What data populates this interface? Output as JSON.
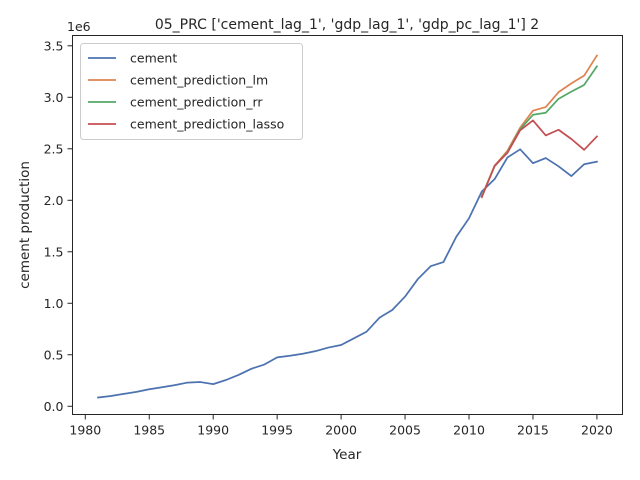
{
  "chart_data": {
    "type": "line",
    "title": "05_PRC ['cement_lag_1', 'gdp_lag_1', 'gdp_pc_lag_1'] 2",
    "xlabel": "Year",
    "ylabel": "cement production",
    "y_offset_label": "1e6",
    "y_multiplier": 1000000,
    "xlim": [
      1979,
      2022
    ],
    "ylim": [
      -80000,
      3600000
    ],
    "x_ticks": [
      1980,
      1985,
      1990,
      1995,
      2000,
      2005,
      2010,
      2015,
      2020
    ],
    "y_ticks": [
      0,
      500000,
      1000000,
      1500000,
      2000000,
      2500000,
      3000000,
      3500000
    ],
    "y_tick_labels": [
      "0.0",
      "0.5",
      "1.0",
      "1.5",
      "2.0",
      "2.5",
      "3.0",
      "3.5"
    ],
    "grid": false,
    "legend_position": "top-left",
    "series": [
      {
        "name": "cement",
        "color": "#4c72b0",
        "x": [
          1981,
          1982,
          1983,
          1984,
          1985,
          1986,
          1987,
          1988,
          1989,
          1990,
          1991,
          1992,
          1993,
          1994,
          1995,
          1996,
          1997,
          1998,
          1999,
          2000,
          2001,
          2002,
          2003,
          2004,
          2005,
          2006,
          2007,
          2008,
          2009,
          2010,
          2011,
          2012,
          2013,
          2014,
          2015,
          2016,
          2017,
          2018,
          2019,
          2020
        ],
        "y": [
          85000,
          100000,
          120000,
          140000,
          165000,
          185000,
          205000,
          230000,
          235000,
          215000,
          255000,
          305000,
          365000,
          405000,
          475000,
          490000,
          510000,
          535000,
          570000,
          595000,
          660000,
          725000,
          860000,
          935000,
          1065000,
          1235000,
          1360000,
          1400000,
          1645000,
          1825000,
          2085000,
          2205000,
          2415000,
          2495000,
          2360000,
          2410000,
          2330000,
          2235000,
          2350000,
          2375000
        ]
      },
      {
        "name": "cement_prediction_lm",
        "color": "#dd8452",
        "x": [
          2011,
          2012,
          2013,
          2014,
          2015,
          2016,
          2017,
          2018,
          2019,
          2020
        ],
        "y": [
          2040000,
          2335000,
          2480000,
          2705000,
          2870000,
          2905000,
          3050000,
          3135000,
          3210000,
          3405000
        ]
      },
      {
        "name": "cement_prediction_rr",
        "color": "#55a868",
        "x": [
          2011,
          2012,
          2013,
          2014,
          2015,
          2016,
          2017,
          2018,
          2019,
          2020
        ],
        "y": [
          2040000,
          2330000,
          2465000,
          2690000,
          2830000,
          2850000,
          2985000,
          3055000,
          3120000,
          3300000
        ]
      },
      {
        "name": "cement_prediction_lasso",
        "color": "#c44e52",
        "x": [
          2011,
          2012,
          2013,
          2014,
          2015,
          2016,
          2017,
          2018,
          2019,
          2020
        ],
        "y": [
          2030000,
          2335000,
          2460000,
          2680000,
          2775000,
          2630000,
          2685000,
          2595000,
          2490000,
          2620000
        ]
      }
    ]
  }
}
